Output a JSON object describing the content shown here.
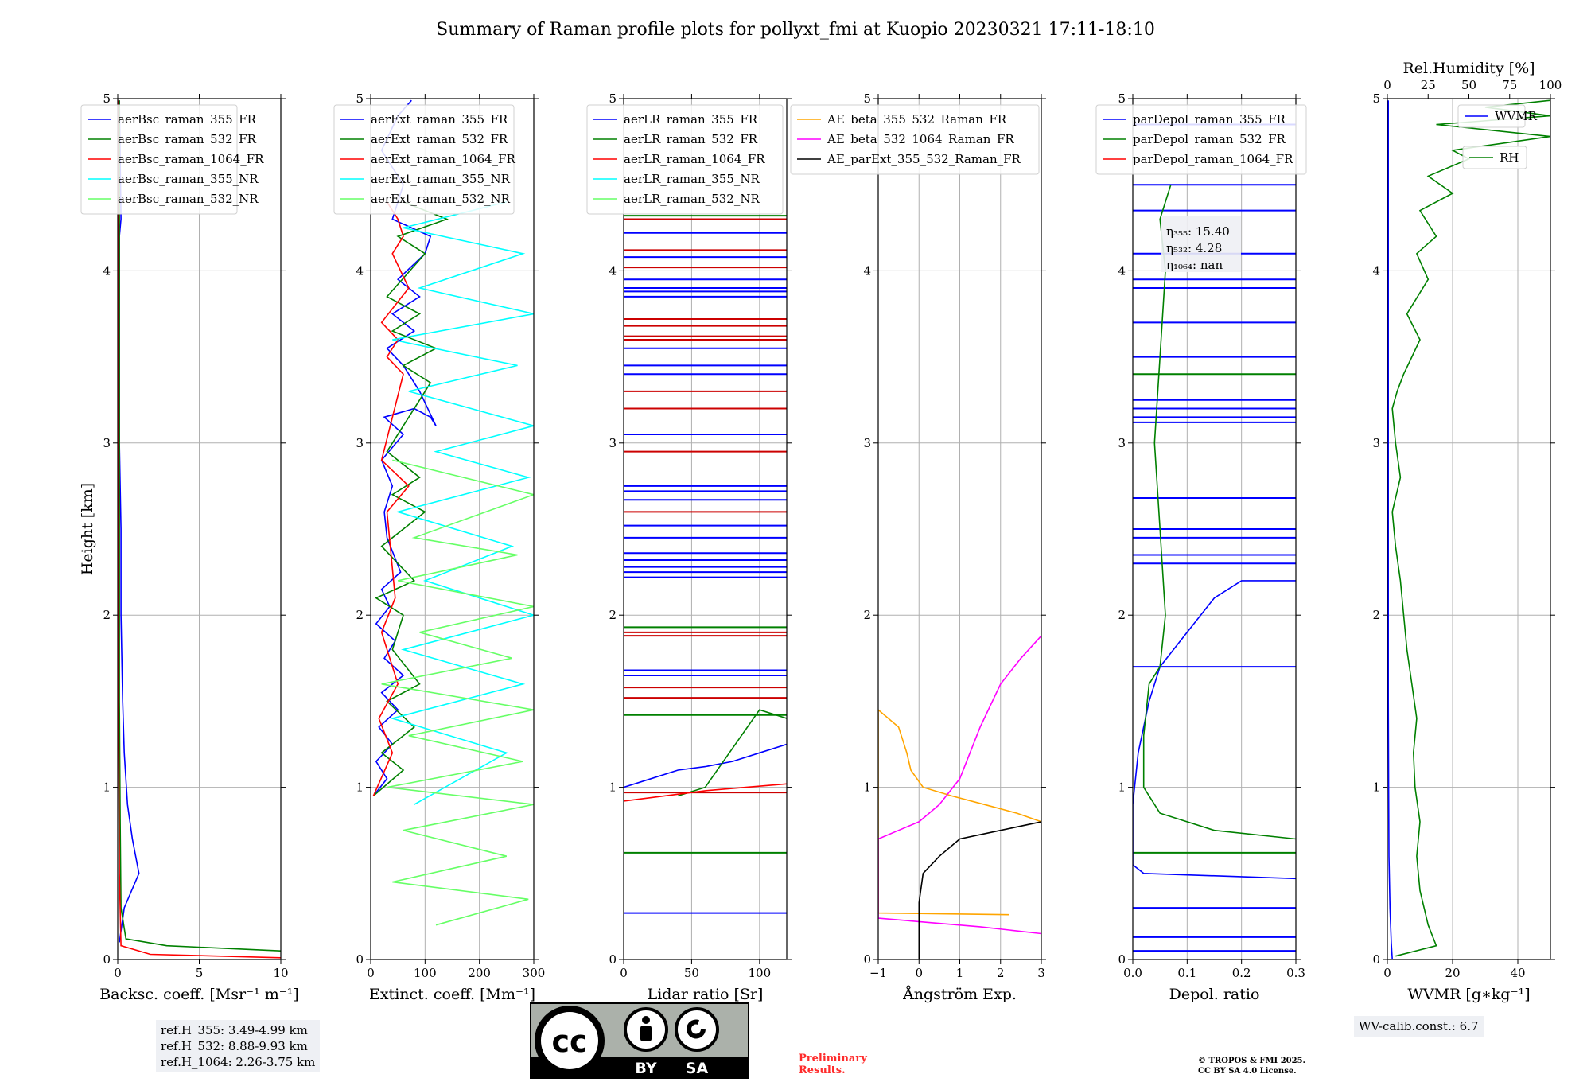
{
  "title": "Summary of Raman profile plots for pollyxt_fmi at Kuopio 20230321 17:11-18:10",
  "ylabel": "Height [km]",
  "notes": {
    "ref_h_355": "ref.H_355: 3.49-4.99 km",
    "ref_h_532": "ref.H_532: 8.88-9.93 km",
    "ref_h_1064": "ref.H_1064: 2.26-3.75 km",
    "wv_calib": "WV-calib.const.: 6.7",
    "preliminary_line1": "Preliminary",
    "preliminary_line2": "Results.",
    "copyright_line1": "© TROPOS & FMI 2025.",
    "copyright_line2": "CC BY SA 4.0 License.",
    "license_badge": [
      "BY",
      "SA"
    ]
  },
  "colors": {
    "blue": "#0000ff",
    "green": "#008000",
    "red": "#ff0000",
    "cyan": "#00ffff",
    "lightgreen": "#66ff66",
    "orange": "#ffa500",
    "magenta": "#ff00ff",
    "black": "#000000",
    "darkred": "#cc0000"
  },
  "chart_data": [
    {
      "type": "line",
      "xlabel": "Backsc. coeff. [Msr⁻¹ m⁻¹]",
      "xlim": [
        0,
        10
      ],
      "xticks": [
        0,
        5,
        10
      ],
      "ylim": [
        0,
        5
      ],
      "yticks": [
        0,
        1,
        2,
        3,
        4,
        5
      ],
      "legend": "top-left",
      "series": [
        {
          "name": "aerBsc_raman_355_FR",
          "color": "blue",
          "x": [
            0.1,
            0.4,
            1.3,
            0.9,
            0.6,
            0.4,
            0.3,
            0.2,
            0.2,
            0.1,
            0.1,
            0.1,
            0.1,
            0.2,
            0.1
          ],
          "y": [
            0.1,
            0.3,
            0.5,
            0.7,
            0.9,
            1.2,
            1.5,
            2.0,
            2.5,
            3.0,
            3.5,
            4.0,
            4.2,
            4.3,
            4.99
          ]
        },
        {
          "name": "aerBsc_raman_532_FR",
          "color": "green",
          "x": [
            10,
            3.0,
            0.5,
            0.2,
            0.15,
            0.1,
            0.1,
            0.1,
            0.1,
            0.1
          ],
          "y": [
            0.05,
            0.08,
            0.12,
            0.3,
            0.8,
            1.5,
            2.5,
            3.5,
            4.5,
            4.99
          ]
        },
        {
          "name": "aerBsc_raman_1064_FR",
          "color": "red",
          "x": [
            10,
            2.0,
            0.2,
            0.1,
            0.05,
            0.05,
            0.05,
            0.05
          ],
          "y": [
            0.01,
            0.03,
            0.08,
            0.5,
            1.5,
            2.5,
            3.5,
            4.99
          ]
        },
        {
          "name": "aerBsc_raman_355_NR",
          "color": "cyan",
          "x": [],
          "y": []
        },
        {
          "name": "aerBsc_raman_532_NR",
          "color": "lightgreen",
          "x": [],
          "y": []
        }
      ]
    },
    {
      "type": "line",
      "xlabel": "Extinct. coeff. [Mm⁻¹]",
      "xlim": [
        0,
        300
      ],
      "xticks": [
        0,
        100,
        200,
        300
      ],
      "ylim": [
        0,
        5
      ],
      "yticks": [
        0,
        1,
        2,
        3,
        4,
        5
      ],
      "legend": "top-left",
      "series": [
        {
          "name": "aerExt_raman_355_FR",
          "color": "blue",
          "x": [
            5,
            30,
            10,
            40,
            15,
            50,
            20,
            60,
            25,
            45,
            10,
            35,
            20,
            55,
            30,
            25,
            40,
            20,
            60,
            25,
            80,
            110,
            120,
            90,
            60,
            30,
            80,
            40,
            90,
            50,
            100,
            110,
            40,
            60,
            20,
            50,
            75
          ],
          "y": [
            0.95,
            1.05,
            1.15,
            1.25,
            1.35,
            1.45,
            1.55,
            1.65,
            1.75,
            1.85,
            1.95,
            2.05,
            2.15,
            2.25,
            2.45,
            2.6,
            2.75,
            2.9,
            3.05,
            3.15,
            3.2,
            3.15,
            3.1,
            3.3,
            3.45,
            3.55,
            3.65,
            3.75,
            3.85,
            3.95,
            4.1,
            4.2,
            4.3,
            4.5,
            4.7,
            4.9,
            4.99
          ]
        },
        {
          "name": "aerExt_raman_532_FR",
          "color": "green",
          "x": [
            5,
            60,
            20,
            80,
            30,
            90,
            40,
            60,
            10,
            80,
            20,
            100,
            40,
            90,
            30,
            110,
            60,
            120,
            40,
            90,
            30,
            100,
            50,
            140,
            60
          ],
          "y": [
            0.95,
            1.1,
            1.2,
            1.35,
            1.5,
            1.6,
            1.8,
            2.0,
            2.1,
            2.2,
            2.4,
            2.6,
            2.7,
            2.8,
            2.95,
            3.35,
            3.45,
            3.55,
            3.65,
            3.75,
            3.85,
            4.1,
            4.2,
            4.3,
            4.4
          ]
        },
        {
          "name": "aerExt_raman_1064_FR",
          "color": "red",
          "x": [
            5,
            40,
            15,
            50,
            20,
            45,
            30,
            70,
            20,
            60,
            30,
            50,
            20,
            70,
            40,
            60,
            50,
            30
          ],
          "y": [
            0.95,
            1.2,
            1.4,
            1.6,
            1.9,
            2.1,
            2.6,
            2.75,
            2.9,
            3.4,
            3.5,
            3.6,
            3.7,
            3.9,
            4.1,
            4.2,
            4.3,
            4.4
          ]
        },
        {
          "name": "aerExt_raman_355_NR",
          "color": "cyan",
          "x": [
            80,
            250,
            40,
            280,
            60,
            300,
            100,
            260,
            50,
            290,
            120,
            300,
            70,
            270,
            40,
            300,
            90,
            280,
            60,
            250
          ],
          "y": [
            0.9,
            1.2,
            1.4,
            1.6,
            1.8,
            2.0,
            2.2,
            2.4,
            2.6,
            2.8,
            2.95,
            3.1,
            3.3,
            3.45,
            3.6,
            3.75,
            3.9,
            4.1,
            4.25,
            4.4
          ]
        },
        {
          "name": "aerExt_raman_532_NR",
          "color": "lightgreen",
          "x": [
            120,
            290,
            40,
            250,
            60,
            300,
            30,
            280,
            70,
            300,
            20,
            260,
            90,
            300,
            50,
            270,
            80,
            300,
            40
          ],
          "y": [
            0.2,
            0.35,
            0.45,
            0.6,
            0.75,
            0.9,
            1.0,
            1.15,
            1.3,
            1.45,
            1.6,
            1.75,
            1.9,
            2.05,
            2.2,
            2.35,
            2.45,
            2.7,
            2.9
          ]
        }
      ]
    },
    {
      "type": "line",
      "xlabel": "Lidar ratio [Sr]",
      "xlim": [
        0,
        120
      ],
      "xticks": [
        0,
        50,
        100
      ],
      "ylim": [
        0,
        5
      ],
      "yticks": [
        0,
        1,
        2,
        3,
        4,
        5
      ],
      "legend": "top-left",
      "series": [
        {
          "name": "aerLR_raman_355_FR",
          "color": "blue",
          "x": [
            0,
            20,
            40,
            60,
            80,
            100,
            120
          ],
          "y": [
            1.0,
            1.05,
            1.1,
            1.12,
            1.15,
            1.2,
            1.25
          ]
        },
        {
          "name": "aerLR_raman_532_FR",
          "color": "green",
          "x": [
            40,
            60,
            100,
            120
          ],
          "y": [
            0.95,
            1.0,
            1.45,
            1.4
          ]
        },
        {
          "name": "aerLR_raman_1064_FR",
          "color": "red",
          "x": [
            0,
            30,
            60,
            90,
            120
          ],
          "y": [
            0.92,
            0.95,
            0.98,
            1.0,
            1.02
          ]
        },
        {
          "name": "aerLR_raman_355_NR",
          "color": "cyan",
          "x": [],
          "y": []
        },
        {
          "name": "aerLR_raman_532_NR",
          "color": "lightgreen",
          "x": [],
          "y": []
        }
      ],
      "hlines": [
        {
          "color": "blue",
          "y": [
            0.27,
            1.65,
            1.68,
            2.22,
            2.25,
            2.28,
            2.32,
            2.36,
            2.45,
            2.52,
            2.67,
            2.72,
            2.75,
            3.05,
            3.4,
            3.45,
            3.55,
            3.85,
            3.88,
            3.9,
            3.95,
            4.08,
            4.22
          ]
        },
        {
          "color": "green",
          "y": [
            0.62,
            1.42,
            1.93,
            3.72,
            4.32
          ]
        },
        {
          "color": "darkred",
          "y": [
            0.97,
            1.52,
            1.58,
            1.88,
            1.9,
            2.6,
            2.95,
            3.2,
            3.3,
            3.6,
            3.62,
            3.68,
            3.72,
            4.02,
            4.12,
            4.3
          ]
        }
      ]
    },
    {
      "type": "line",
      "xlabel": "Ångström Exp.",
      "xlim": [
        -1,
        3
      ],
      "xticks": [
        -1,
        0,
        1,
        2,
        3
      ],
      "ylim": [
        0,
        5
      ],
      "yticks": [
        0,
        1,
        2,
        3,
        4,
        5
      ],
      "legend": "top-left",
      "series": [
        {
          "name": "AE_beta_355_532_Raman_FR",
          "color": "orange",
          "x": [
            2.2,
            -1.0,
            -1.0,
            -0.5,
            -0.3,
            -0.2,
            0.1,
            0.8,
            1.6,
            2.4,
            3.0
          ],
          "y": [
            0.26,
            0.27,
            1.45,
            1.35,
            1.2,
            1.1,
            1.0,
            0.95,
            0.9,
            0.85,
            0.8
          ]
        },
        {
          "name": "AE_beta_532_1064_Raman_FR",
          "color": "magenta",
          "x": [
            3.0,
            1.5,
            -1.0,
            -1.0,
            -0.5,
            0.0,
            0.5,
            1.0,
            1.5,
            2.0,
            2.5,
            3.0
          ],
          "y": [
            0.15,
            0.19,
            0.24,
            0.7,
            0.75,
            0.8,
            0.9,
            1.05,
            1.35,
            1.6,
            1.75,
            1.88
          ]
        },
        {
          "name": "AE_parExt_355_532_Raman_FR",
          "color": "black",
          "x": [
            0,
            0,
            0.0,
            0.1,
            0.5,
            1.0,
            2.0,
            3.0
          ],
          "y": [
            0,
            0.3,
            0.33,
            0.5,
            0.6,
            0.7,
            0.75,
            0.8
          ]
        }
      ]
    },
    {
      "type": "line",
      "xlabel": "Depol. ratio",
      "xlim": [
        0,
        0.3
      ],
      "xticks": [
        0.0,
        0.1,
        0.2,
        0.3
      ],
      "ylim": [
        0,
        5
      ],
      "yticks": [
        0,
        1,
        2,
        3,
        4,
        5
      ],
      "legend": "top-left",
      "annotations": [
        {
          "label": "η₃₅₅: 15.40"
        },
        {
          "label": "η₅₃₂: 4.28"
        },
        {
          "label": "η₁₀₆₄: nan"
        }
      ],
      "series": [
        {
          "name": "parDepol_raman_355_FR",
          "color": "blue",
          "x": [
            0.3,
            0.02,
            0.0,
            0.0,
            0.01,
            0.03,
            0.05,
            0.1,
            0.15,
            0.2,
            0.3
          ],
          "y": [
            0.47,
            0.5,
            0.55,
            0.9,
            1.2,
            1.5,
            1.7,
            1.9,
            2.1,
            2.2,
            2.2
          ]
        },
        {
          "name": "parDepol_raman_532_FR",
          "color": "green",
          "x": [
            0.3,
            0.15,
            0.05,
            0.02,
            0.02,
            0.03,
            0.05,
            0.06,
            0.05,
            0.04,
            0.05,
            0.06,
            0.05,
            0.07
          ],
          "y": [
            0.7,
            0.75,
            0.85,
            1.0,
            1.3,
            1.6,
            1.7,
            2.0,
            2.5,
            3.0,
            3.5,
            4.0,
            4.3,
            4.5
          ]
        },
        {
          "name": "parDepol_raman_1064_FR",
          "color": "red",
          "x": [],
          "y": []
        }
      ],
      "hlines": [
        {
          "color": "blue",
          "y": [
            0.05,
            0.13,
            0.3,
            1.7,
            2.3,
            2.35,
            2.45,
            2.5,
            2.68,
            3.12,
            3.15,
            3.2,
            3.25,
            3.5,
            3.7,
            3.9,
            3.95,
            4.1,
            4.35,
            4.5,
            4.85
          ]
        },
        {
          "color": "green",
          "y": [
            0.62,
            3.4
          ]
        }
      ]
    },
    {
      "type": "line",
      "xlabel": "WVMR [g∗kg⁻¹]",
      "xlim": [
        0,
        50
      ],
      "xticks": [
        0,
        20,
        40
      ],
      "x2label": "Rel.Humidity [%]",
      "x2lim": [
        0,
        100
      ],
      "x2ticks": [
        0,
        25,
        50,
        75,
        100
      ],
      "ylim": [
        0,
        5
      ],
      "yticks": [
        0,
        1,
        2,
        3,
        4,
        5
      ],
      "legend": "top-right",
      "series": [
        {
          "name": "WVMR",
          "color": "blue",
          "x": [
            1.5,
            1.2,
            0.8,
            0.5,
            0.4,
            0.3,
            0.3,
            0.3,
            0.3,
            0.3,
            0.3
          ],
          "y": [
            0,
            0.1,
            0.3,
            0.6,
            1.0,
            1.5,
            2.0,
            2.5,
            3.0,
            4.0,
            4.99
          ]
        },
        {
          "name": "RH",
          "color": "green",
          "axis": "x2",
          "x": [
            5,
            30,
            25,
            20,
            18,
            20,
            17,
            16,
            18,
            15,
            12,
            10,
            8,
            5,
            3,
            8,
            5,
            3,
            6,
            10,
            15,
            20,
            12,
            25,
            18,
            30,
            20,
            40,
            25,
            50,
            40,
            100,
            30,
            100,
            60,
            100
          ],
          "y": [
            0.02,
            0.08,
            0.2,
            0.4,
            0.6,
            0.8,
            1.0,
            1.2,
            1.4,
            1.6,
            1.8,
            2.0,
            2.2,
            2.4,
            2.6,
            2.8,
            3.0,
            3.2,
            3.3,
            3.4,
            3.5,
            3.6,
            3.75,
            3.95,
            4.1,
            4.2,
            4.35,
            4.45,
            4.55,
            4.65,
            4.7,
            4.78,
            4.85,
            4.9,
            4.95,
            4.99
          ]
        }
      ]
    }
  ]
}
